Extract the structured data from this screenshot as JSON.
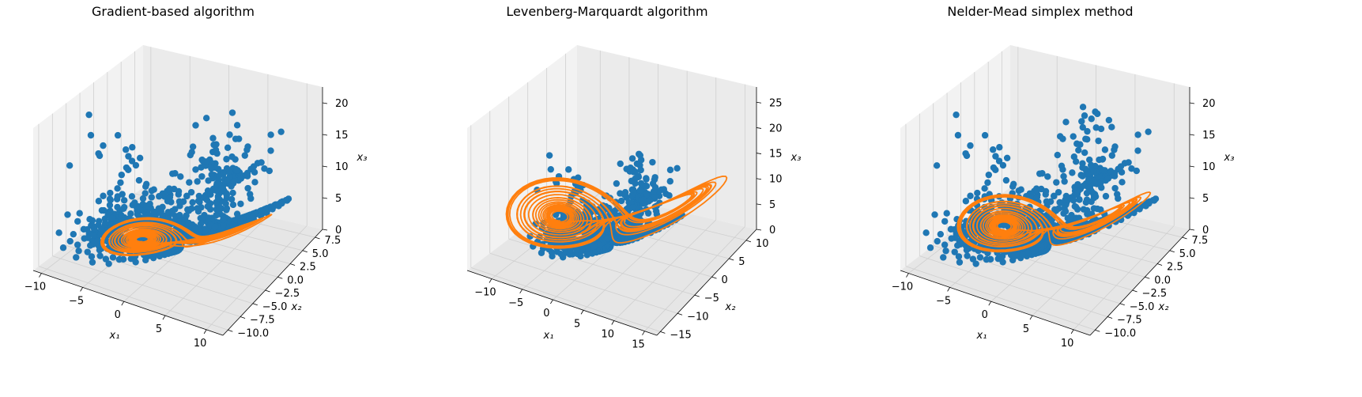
{
  "figure": {
    "background": "#ffffff"
  },
  "colors": {
    "data_points": "#1f77b4",
    "simulation": "#ff7f0e",
    "pane": "#f2f2f2",
    "grid": "#cfcfcf"
  },
  "legend": "none",
  "chart_data": [
    {
      "type": "scatter",
      "title": "Gradient-based algorithm",
      "xlabel": "x₁",
      "ylabel": "x₂",
      "zlabel": "x₃",
      "xticks": [
        "−10",
        "−5",
        "0",
        "5",
        "10"
      ],
      "yticks": [
        "−10.0",
        "−7.5",
        "−5.0",
        "−2.5",
        "0.0",
        "2.5",
        "5.0",
        "7.5"
      ],
      "zticks": [
        "0",
        "5",
        "10",
        "15",
        "20"
      ],
      "xlim": [
        -11,
        12
      ],
      "ylim": [
        -11,
        9
      ],
      "zlim": [
        0,
        22.5
      ],
      "grid": true,
      "series": [
        {
          "kind": "scatter",
          "color": "#1f77b4",
          "attractor": "two-lobe spiral",
          "x_range": [
            -10,
            10
          ],
          "y_range": [
            -10,
            8
          ],
          "z_range": [
            0,
            21
          ]
        },
        {
          "kind": "line",
          "color": "#ff7f0e",
          "attractor": "two-lobe spiral",
          "x_range": [
            -8,
            8
          ],
          "y_range": [
            -7,
            7
          ],
          "z_range": [
            0,
            8
          ]
        }
      ]
    },
    {
      "type": "scatter",
      "title": "Levenberg-Marquardt algorithm",
      "xlabel": "x₁",
      "ylabel": "x₂",
      "zlabel": "x₃",
      "xticks": [
        "−10",
        "−5",
        "0",
        "5",
        "10",
        "15"
      ],
      "yticks": [
        "−15",
        "−10",
        "−5",
        "0",
        "5",
        "10"
      ],
      "zticks": [
        "0",
        "5",
        "10",
        "15",
        "20",
        "25"
      ],
      "xlim": [
        -14,
        17
      ],
      "ylim": [
        -16,
        13
      ],
      "zlim": [
        0,
        28
      ],
      "grid": true,
      "series": [
        {
          "kind": "scatter",
          "color": "#1f77b4",
          "attractor": "two-lobe spiral",
          "x_range": [
            -9,
            9
          ],
          "y_range": [
            -9,
            8
          ],
          "z_range": [
            0,
            18
          ]
        },
        {
          "kind": "line",
          "color": "#ff7f0e",
          "attractor": "two-lobe spiral",
          "x_range": [
            -13,
            15
          ],
          "y_range": [
            -14,
            12
          ],
          "z_range": [
            0,
            26
          ]
        }
      ]
    },
    {
      "type": "scatter",
      "title": "Nelder-Mead simplex method",
      "xlabel": "x₁",
      "ylabel": "x₂",
      "zlabel": "x₃",
      "xticks": [
        "−10",
        "−5",
        "0",
        "5",
        "10"
      ],
      "yticks": [
        "−10.0",
        "−7.5",
        "−5.0",
        "−2.5",
        "0.0",
        "2.5",
        "5.0",
        "7.5"
      ],
      "zticks": [
        "0",
        "5",
        "10",
        "15",
        "20"
      ],
      "xlim": [
        -11,
        12
      ],
      "ylim": [
        -11,
        9
      ],
      "zlim": [
        0,
        22.5
      ],
      "grid": true,
      "series": [
        {
          "kind": "scatter",
          "color": "#1f77b4",
          "attractor": "two-lobe spiral",
          "x_range": [
            -10,
            10
          ],
          "y_range": [
            -10,
            8
          ],
          "z_range": [
            0,
            21
          ]
        },
        {
          "kind": "line",
          "color": "#ff7f0e",
          "attractor": "two-lobe spiral",
          "x_range": [
            -9,
            9
          ],
          "y_range": [
            -8,
            8
          ],
          "z_range": [
            0,
            16
          ]
        }
      ]
    }
  ]
}
